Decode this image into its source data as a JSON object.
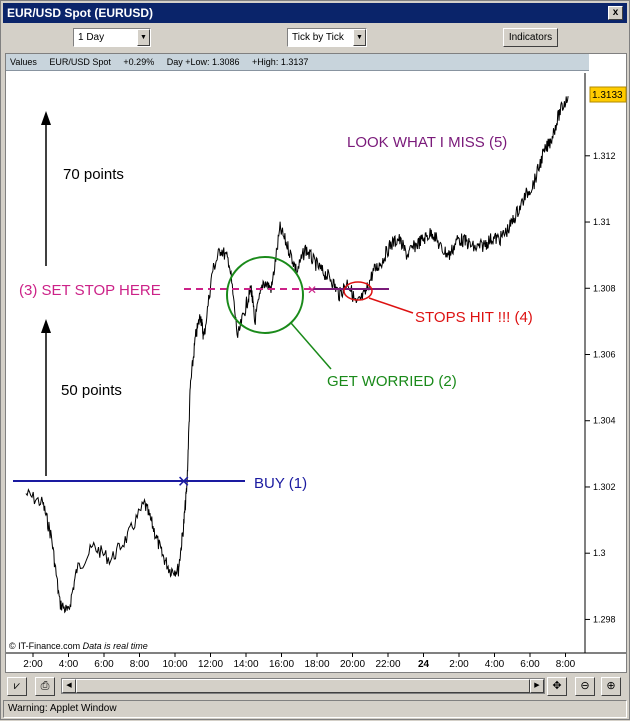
{
  "window": {
    "title": "EUR/USD Spot (EURUSD)",
    "close_label": "x"
  },
  "toolbar": {
    "period": "1 Day",
    "mode": "Tick by Tick",
    "indicators_label": "Indicators"
  },
  "infobar": {
    "values_label": "Values",
    "symbol": "EUR/USD Spot",
    "change": "+0.29%",
    "day_low": "Day +Low: 1.3086",
    "high": "+High: 1.3137"
  },
  "price_tag": "1.3133",
  "footer": {
    "credit": "© IT-Finance.com",
    "note": "Data is real time"
  },
  "status": "Warning: Applet Window",
  "chart_data": {
    "type": "line",
    "title": "",
    "xlabel": "",
    "ylabel": "",
    "ylim": [
      1.2975,
      1.3145
    ],
    "y_ticks": [
      "1.298",
      "1.3",
      "1.302",
      "1.304",
      "1.306",
      "1.308",
      "1.31",
      "1.312"
    ],
    "x_ticks": [
      "2:00",
      "4:00",
      "6:00",
      "8:00",
      "10:00",
      "12:00",
      "14:00",
      "16:00",
      "18:00",
      "20:00",
      "22:00",
      "24",
      "2:00",
      "4:00",
      "6:00",
      "8:00"
    ],
    "series": [
      {
        "x": [
          1,
          2,
          2.5,
          3,
          3.5,
          4,
          5,
          6,
          7,
          8,
          8.5,
          9,
          9.5,
          10,
          10.3,
          10.5,
          10.7,
          11,
          11.3,
          11.5,
          12,
          12.5,
          13,
          13.5,
          14,
          14.3,
          14.5,
          15,
          15.5,
          16,
          16.5,
          17,
          17.5,
          18,
          18.5,
          19,
          19.5,
          20,
          20.5,
          21,
          21.5,
          22,
          22.5,
          23,
          23.5,
          24,
          24.5,
          25,
          25.5,
          26,
          26.5,
          27,
          27.5,
          28,
          28.5,
          29,
          29.5,
          30,
          30.5,
          31,
          31.5,
          32,
          32.5,
          33
        ],
        "values": [
          1.3018,
          1.3015,
          1.3005,
          1.2985,
          1.2982,
          1.2995,
          1.3002,
          1.2998,
          1.3005,
          1.3015,
          1.3008,
          1.3,
          1.2995,
          1.2995,
          1.3008,
          1.302,
          1.305,
          1.3065,
          1.3072,
          1.3065,
          1.3085,
          1.3092,
          1.3088,
          1.3065,
          1.3075,
          1.308,
          1.307,
          1.3082,
          1.308,
          1.3098,
          1.3092,
          1.3085,
          1.3092,
          1.3088,
          1.3085,
          1.3083,
          1.3078,
          1.3082,
          1.3075,
          1.3078,
          1.3085,
          1.3088,
          1.3093,
          1.3095,
          1.309,
          1.3093,
          1.3095,
          1.3097,
          1.3092,
          1.309,
          1.3095,
          1.3094,
          1.3092,
          1.3093,
          1.3095,
          1.3095,
          1.3098,
          1.3103,
          1.3108,
          1.3112,
          1.312,
          1.3125,
          1.3133,
          1.3138
        ]
      }
    ],
    "annotations": {
      "up_70": "70 points",
      "up_50": "50 points",
      "stop": "(3) SET STOP HERE",
      "miss": "LOOK WHAT I MISS (5)",
      "stops_hit": "STOPS HIT !!! (4)",
      "worried": "GET WORRIED (2)",
      "buy": "BUY (1)"
    },
    "colors": {
      "buy": "#1a1aa0",
      "stop": "#cc2288",
      "miss": "#7a1a7a",
      "hit": "#dd1111",
      "worried": "#1a8a1a",
      "line": "#000000",
      "tag": "#ffcc00"
    }
  }
}
